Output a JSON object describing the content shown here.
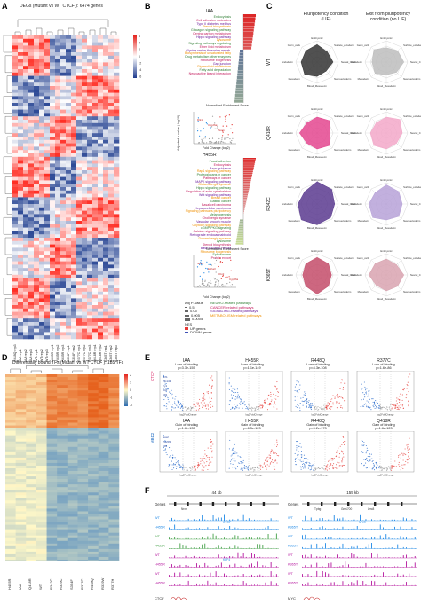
{
  "panels": {
    "A": {
      "letter": "A",
      "title": "DEGs (Mutant vs WT CTCF ): 6474 genes",
      "colorbar_ticks": [
        "6",
        "4",
        "2",
        "0",
        "-2",
        "-4",
        "-6"
      ],
      "columns": [
        "R448Q rep3",
        "IAA rep1",
        "IAA rep2",
        "IAA rep3",
        "WT rep1",
        "WT rep2",
        "WT rep3",
        "H455R rep1",
        "H455R rep2",
        "H455R rep3",
        "S354F rep1",
        "S354F rep2",
        "R377C rep1",
        "R377C rep2",
        "R377C rep3",
        "Q418R rep1",
        "Q418R rep2",
        "K365T rep1",
        "K365T rep2",
        "K365T rep3"
      ]
    },
    "B": {
      "letter": "B",
      "iaa_title": "IAA",
      "h455r_title": "H455R",
      "iaa_terms": [
        "Endocytosis",
        "Cell adhesion molecules",
        "Type II diabetes mellitus",
        "Steroid biosynthesis",
        "Glucagon signaling pathway",
        "Central carbon metabolism",
        "Hippo signaling pathway",
        "Lysosome",
        "Signaling pathways regulating",
        "Ether lipid metabolism",
        "Glycine serine threonine metab.",
        "Biosynthesis of unsaturated fatty",
        "Drug metabolism other enzymes",
        "Ribosome biogenesis",
        "Gap junction",
        "Glycerolipid metabolism",
        "Fatty acid degradation",
        "Neuroactive ligand interaction"
      ],
      "h455r_terms": [
        "Focal adhesion",
        "Endocytosis",
        "Axon guidance",
        "Rap1 signaling pathway",
        "Proteoglycans in cancer",
        "Pathways in cancer",
        "MAPK signaling pathway",
        "Glutamatergic synapse",
        "Hippo signaling pathway",
        "Regulation of actin cytoskeleton",
        "Wnt signaling pathway",
        "Breast cancer",
        "Gastric cancer",
        "Basal cell carcinoma",
        "Hepatocellular carcinoma",
        "Signaling pathways pluripotency",
        "Melanogenesis",
        "Cholinergic synapse",
        "Vascular smooth muscle",
        "Oxytocin signaling pathway",
        "cGMP-PKG signaling",
        "Calcium signaling pathway",
        "Retrograde endocannabinoid",
        "Dopaminergic synapse",
        "Lysosome",
        "Steroid biosynthesis",
        "Base Excision Repair",
        "Ribosome biogenesis",
        "Spliceosome",
        "Protein export"
      ],
      "axis_nes": "Normalized Enrichment Score",
      "axis_fc": "Fold Change (log2)",
      "axis_p": "Adjusted p-value (-log10)",
      "iaa_genes": [
        "Dlk1",
        "Cyp26a1",
        "Sox1"
      ],
      "h455r_genes": [
        "Nr2f1",
        "Epha3",
        "Otx2",
        "Cyp26a1"
      ],
      "legend_p_title": "Adj P-Value",
      "legend_p": [
        "0.5",
        "0.05",
        "0.005",
        "0.0005"
      ],
      "legend_nes_title": "NES",
      "legend_nes": [
        "UP genes",
        "DOWN genes"
      ],
      "legend_paths": [
        "NEURO-related pathways",
        "CANCER-related pathways",
        "SIGNALING-related pathways",
        "METABOLISM-related pathways"
      ],
      "path_colors": [
        "#2e7d32",
        "#c2185b",
        "#6a1b9a",
        "#ef8f00"
      ]
    },
    "C": {
      "letter": "C",
      "head_left": "Pluripotency condition\n(LIF)",
      "head_right": "Exit from pluripotency\ncondition (no LIF)",
      "rows": [
        "WT",
        "Q418R",
        "R342C",
        "K365T"
      ],
      "row_colors": [
        "#333333",
        "#e4468f",
        "#5a3a8f",
        "#c44c6a"
      ],
      "row_colors_light": [
        "#bdbdbd",
        "#f3a8c9",
        "#b7a2d8",
        "#d9a3b0"
      ],
      "axes": [
        "Embryonic",
        "Surface_ectoderm",
        "Neural_Crest",
        "Neuroectoderm",
        "Blood_Mesoderm",
        "Mesoderm",
        "Endoderm",
        "Germ_cells"
      ]
    },
    "D": {
      "letter": "D",
      "title": "Differentially bound TFs (Mutant vs WT CTCF ): 185 TFs",
      "colorbar_ticks": [
        "2",
        "1",
        "0",
        "-1",
        "-2"
      ],
      "columns": [
        "H455R",
        "IAA",
        "Q418R",
        "WT",
        "R342C",
        "R339C",
        "S354F",
        "R377C",
        "R448Q",
        "R339W",
        "R377H"
      ]
    },
    "E": {
      "letter": "E",
      "row_labels": [
        "CTCF",
        "MBD2"
      ],
      "row_colors": [
        "#d81b60",
        "#1565c0"
      ],
      "top": [
        {
          "name": "IAA",
          "sub": "Loss of binding",
          "p": "p=3.3e-155"
        },
        {
          "name": "H455R",
          "sub": "Loss of binding",
          "p": "p=1.1e-149"
        },
        {
          "name": "R448Q",
          "sub": "Loss of binding",
          "p": "p=4.3e-108"
        },
        {
          "name": "R377C",
          "sub": "Loss of binding",
          "p": "p=1.6e-86"
        }
      ],
      "bottom": [
        {
          "name": "IAA",
          "sub": "Gain of binding",
          "p": "p=1.6e-135"
        },
        {
          "name": "H455R",
          "sub": "Gain of binding",
          "p": "p=6.5e-123"
        },
        {
          "name": "R448Q",
          "sub": "Gain of binding",
          "p": "p=5.2e-173"
        },
        {
          "name": "Q418R",
          "sub": "Gain of binding",
          "p": "p=1.6e-123"
        }
      ],
      "top_left_genes": [
        "Nrf1",
        "Zfp143",
        "Yy1",
        "Ctcf",
        "Klf4"
      ],
      "bottom_left_genes": [
        "Sox2",
        "Pou5f1",
        "Klf4"
      ],
      "axis_x": "log2FoldChange",
      "axis_y": "-log10(pvalue)"
    },
    "F": {
      "letter": "F",
      "left_scale": "44 kb",
      "right_scale": "155 kb",
      "genes_label": "Genes",
      "left_gene": "Nrxn",
      "right_genes": [
        "Tpbg",
        "Gm1700",
        "Lrrc8"
      ],
      "tracks_left": [
        {
          "label": "WT",
          "color": "#1e88e5"
        },
        {
          "label": "H455R",
          "color": "#1e88e5"
        },
        {
          "label": "WT",
          "color": "#43a047"
        },
        {
          "label": "H455R",
          "color": "#43a047"
        },
        {
          "label": "WT",
          "color": "#b5179e"
        },
        {
          "label": "H455R",
          "color": "#b5179e"
        },
        {
          "label": "WT",
          "color": "#b5179e"
        },
        {
          "label": "H455R",
          "color": "#b5179e"
        }
      ],
      "tracks_right": [
        {
          "label": "WT",
          "color": "#1e88e5"
        },
        {
          "label": "K365T",
          "color": "#1e88e5"
        },
        {
          "label": "WT",
          "color": "#1e88e5"
        },
        {
          "label": "K365T",
          "color": "#1e88e5"
        },
        {
          "label": "WT",
          "color": "#b5179e"
        },
        {
          "label": "K365T",
          "color": "#b5179e"
        },
        {
          "label": "WT",
          "color": "#b5179e"
        },
        {
          "label": "K365T",
          "color": "#b5179e"
        }
      ],
      "left_marks": [
        "CTCF",
        "KLF4"
      ],
      "right_marks": [
        "MYC"
      ],
      "bottom_left": "CTCF",
      "bottom_right": "MYC"
    }
  }
}
